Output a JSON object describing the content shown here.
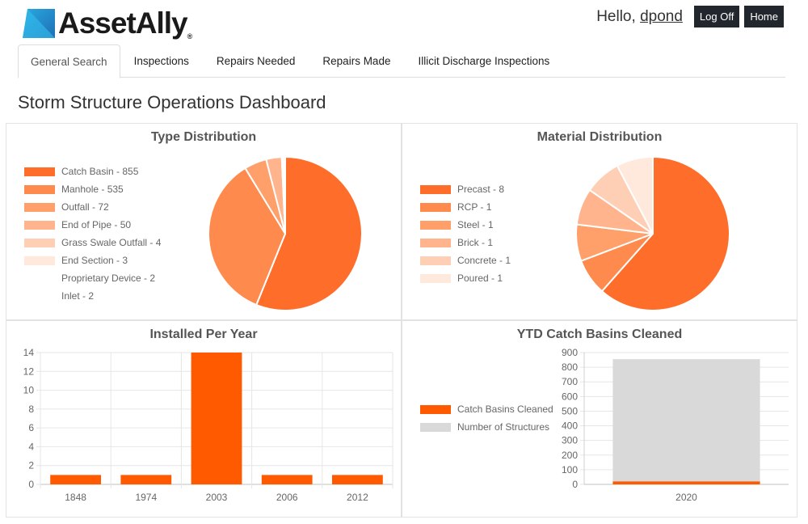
{
  "brand": {
    "name": "AssetAlly",
    "reg": "®"
  },
  "header": {
    "greeting": "Hello,",
    "username": "dpond",
    "logoff_label": "Log Off",
    "home_label": "Home"
  },
  "tabs": [
    {
      "label": "General Search",
      "active": true
    },
    {
      "label": "Inspections",
      "active": false
    },
    {
      "label": "Repairs Needed",
      "active": false
    },
    {
      "label": "Repairs Made",
      "active": false
    },
    {
      "label": "Illicit Discharge Inspections",
      "active": false
    }
  ],
  "page_title": "Storm Structure Operations Dashboard",
  "chart_data": [
    {
      "type": "pie",
      "title": "Type Distribution",
      "legend_position": "left",
      "categories": [
        "Catch Basin - 855",
        "Manhole - 535",
        "Outfall - 72",
        "End of Pipe - 50",
        "Grass Swale Outfall - 4",
        "End Section - 3",
        "Proprietary Device - 2",
        "Inlet - 2"
      ],
      "values": [
        855,
        535,
        72,
        50,
        4,
        3,
        2,
        2
      ],
      "colors": [
        "#ff6d2b",
        "#ff8a4d",
        "#ffa06b",
        "#ffb48d",
        "#ffcfb5",
        "#ffe8dc",
        "#ffffff",
        "#ffffff"
      ]
    },
    {
      "type": "pie",
      "title": "Material Distribution",
      "legend_position": "left",
      "categories": [
        "Precast - 8",
        "RCP - 1",
        "Steel - 1",
        "Brick - 1",
        "Concrete - 1",
        "Poured - 1"
      ],
      "values": [
        8,
        1,
        1,
        1,
        1,
        1
      ],
      "colors": [
        "#ff6d2b",
        "#ff8a4d",
        "#ffa06b",
        "#ffb48d",
        "#ffcfb5",
        "#ffe8dc"
      ]
    },
    {
      "type": "bar",
      "title": "Installed Per Year",
      "categories": [
        "1848",
        "1974",
        "2003",
        "2006",
        "2012"
      ],
      "values": [
        1,
        1,
        14,
        1,
        1
      ],
      "ylim": [
        0,
        14
      ],
      "yticks": [
        0,
        2,
        4,
        6,
        8,
        10,
        12,
        14
      ],
      "color": "#ff5a00",
      "grid": true
    },
    {
      "type": "bar",
      "title": "YTD Catch Basins Cleaned",
      "legend_position": "left",
      "categories": [
        "2020"
      ],
      "series": [
        {
          "name": "Catch Basins Cleaned",
          "values": [
            20
          ],
          "color": "#ff5a00"
        },
        {
          "name": "Number of Structures",
          "values": [
            855
          ],
          "color": "#d9d9d9"
        }
      ],
      "stacked": true,
      "ylim": [
        0,
        900
      ],
      "yticks": [
        0,
        100,
        200,
        300,
        400,
        500,
        600,
        700,
        800,
        900
      ],
      "grid": true
    }
  ]
}
